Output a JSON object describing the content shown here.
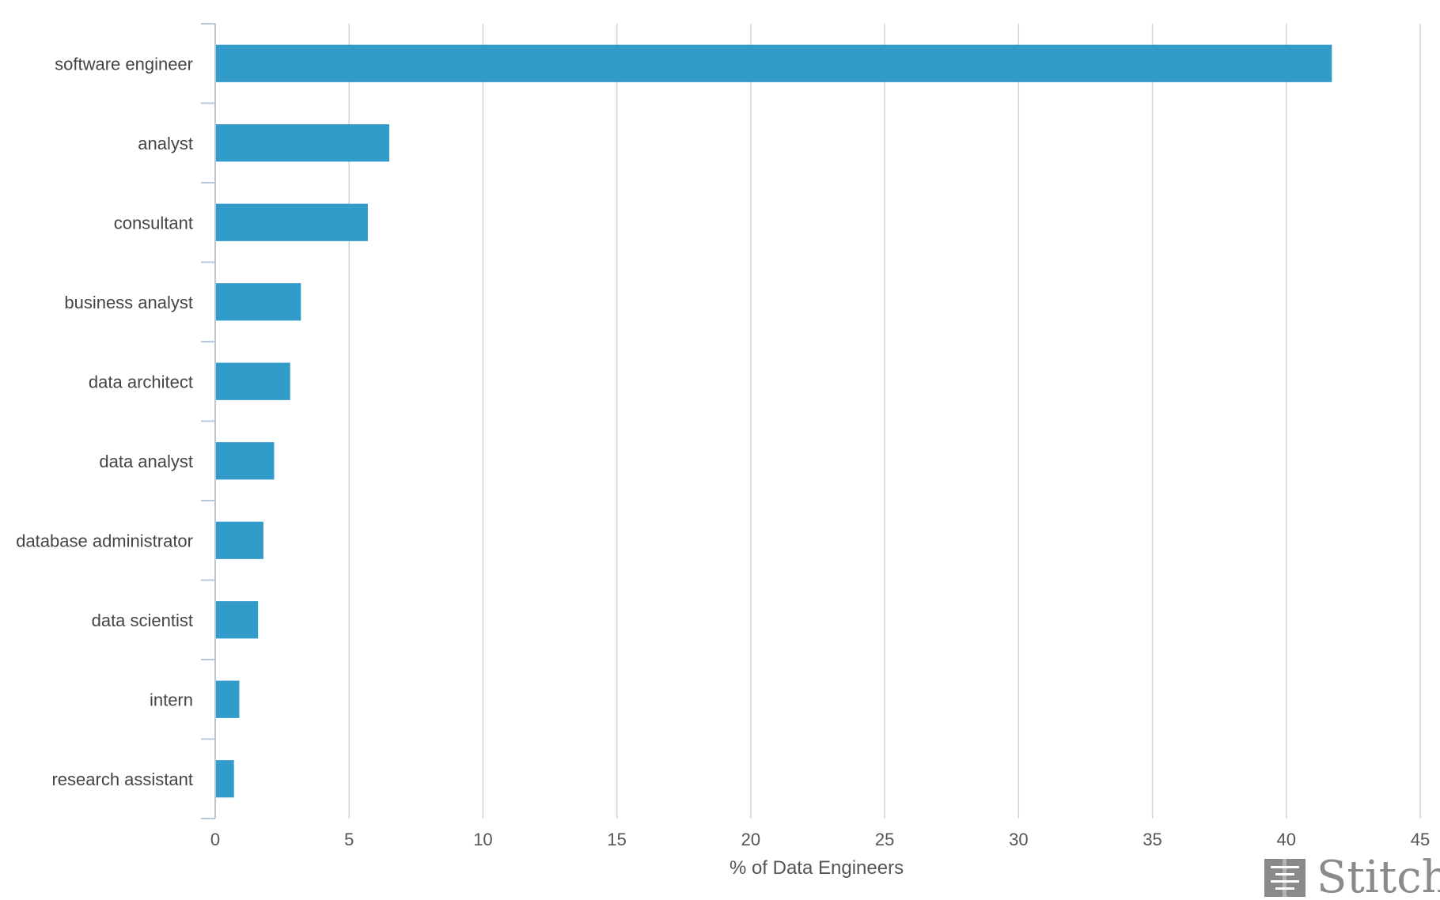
{
  "chart_data": {
    "type": "bar",
    "orientation": "horizontal",
    "categories": [
      "software engineer",
      "analyst",
      "consultant",
      "business analyst",
      "data architect",
      "data analyst",
      "database administrator",
      "data scientist",
      "intern",
      "research assistant"
    ],
    "values": [
      41.7,
      6.5,
      5.7,
      3.2,
      2.8,
      2.2,
      1.8,
      1.6,
      0.9,
      0.7
    ],
    "xlabel": "% of Data Engineers",
    "ylabel": "",
    "xlim": [
      0,
      45
    ],
    "x_ticks": [
      "0",
      "5",
      "10",
      "15",
      "20",
      "25",
      "30",
      "35",
      "40",
      "45"
    ],
    "grid": "vertical",
    "bar_color": "#319bca",
    "grid_color": "#d0d5da",
    "axis_color": "#b8c8dc"
  },
  "logo": {
    "text": "Stitch",
    "color": "#8a8a8a"
  }
}
